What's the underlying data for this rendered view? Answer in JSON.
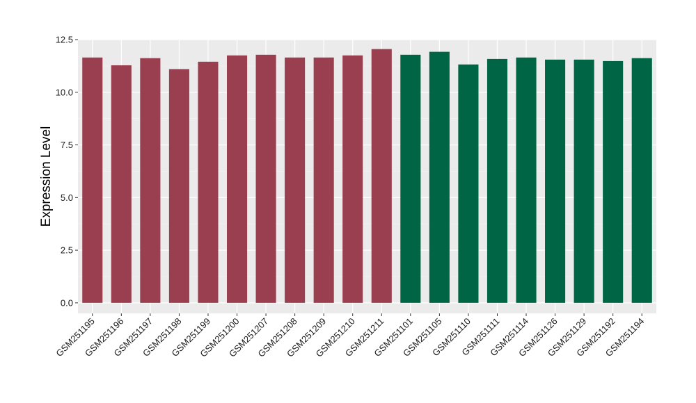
{
  "chart_data": {
    "type": "bar",
    "title": "",
    "xlabel": "",
    "ylabel": "Expression Level",
    "ylim": [
      -0.5,
      12.5
    ],
    "yticks": [
      0.0,
      2.5,
      5.0,
      7.5,
      10.0,
      12.5
    ],
    "ytick_labels": [
      "0.0",
      "2.5",
      "5.0",
      "7.5",
      "10.0",
      "12.5"
    ],
    "grid": true,
    "legend": "none",
    "panel_color": "#ebebeb",
    "categories": [
      "GSM251195",
      "GSM251196",
      "GSM251197",
      "GSM251198",
      "GSM251199",
      "GSM251200",
      "GSM251207",
      "GSM251208",
      "GSM251209",
      "GSM251210",
      "GSM251211",
      "GSM251101",
      "GSM251105",
      "GSM251110",
      "GSM251111",
      "GSM251114",
      "GSM251126",
      "GSM251129",
      "GSM251192",
      "GSM251194"
    ],
    "values": [
      11.65,
      11.28,
      11.62,
      11.1,
      11.45,
      11.75,
      11.78,
      11.65,
      11.65,
      11.75,
      12.05,
      11.78,
      11.92,
      11.32,
      11.58,
      11.65,
      11.55,
      11.55,
      11.48,
      11.62
    ],
    "bar_colors": [
      "#9a3f4f",
      "#9a3f4f",
      "#9a3f4f",
      "#9a3f4f",
      "#9a3f4f",
      "#9a3f4f",
      "#9a3f4f",
      "#9a3f4f",
      "#9a3f4f",
      "#9a3f4f",
      "#9a3f4f",
      "#006544",
      "#006544",
      "#006544",
      "#006544",
      "#006544",
      "#006544",
      "#006544",
      "#006544",
      "#006544"
    ]
  }
}
